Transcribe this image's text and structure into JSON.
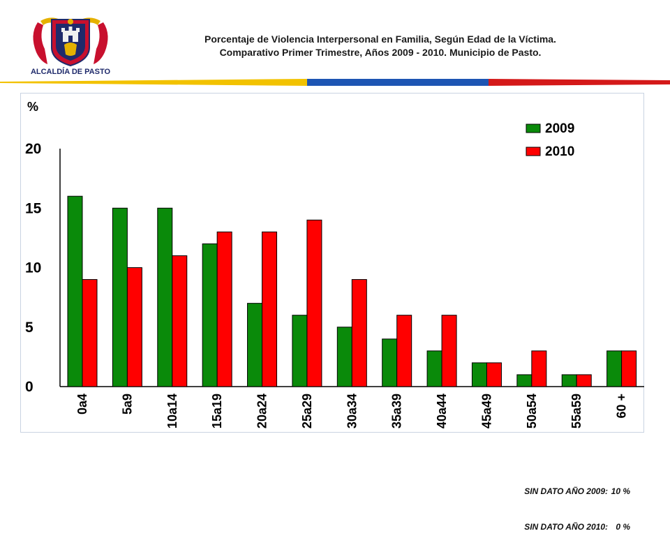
{
  "header": {
    "logo_text": "ALCALDÍA DE PASTO",
    "title_line1": "Porcentaje de Violencia Interpersonal en Familia,   Según Edad de la Víctima.",
    "title_line2": "Comparativo Primer Trimestre, Años 2009 - 2010. Municipio de Pasto."
  },
  "colors": {
    "series_2009": "#0a8a0a",
    "series_2010": "#ff0000",
    "band_yellow": "#f2c200",
    "band_blue": "#1d55b3",
    "band_red": "#d41919",
    "logo_red": "#c8102e",
    "logo_navy": "#1f2a6b",
    "logo_gold": "#e5b100"
  },
  "chart_data": {
    "type": "bar",
    "ylabel": "%",
    "ylim": [
      0,
      20
    ],
    "yticks": [
      0,
      5,
      10,
      15,
      20
    ],
    "grid": false,
    "legend_position": "top-right",
    "categories": [
      "0a4",
      "5a9",
      "10a14",
      "15a19",
      "20a24",
      "25a29",
      "30a34",
      "35a39",
      "40a44",
      "45a49",
      "50a54",
      "55a59",
      "60 +"
    ],
    "series": [
      {
        "name": "2009",
        "values": [
          16,
          15,
          15,
          12,
          7,
          6,
          5,
          4,
          3,
          2,
          1,
          1,
          3
        ]
      },
      {
        "name": "2010",
        "values": [
          9,
          10,
          11,
          13,
          13,
          14,
          9,
          6,
          6,
          2,
          3,
          1,
          3
        ]
      }
    ]
  },
  "footnotes": [
    {
      "label": "SIN DATO AÑO 2009:",
      "value": "10 %"
    },
    {
      "label": "SIN DATO AÑO 2010:",
      "value": "0 %"
    }
  ]
}
